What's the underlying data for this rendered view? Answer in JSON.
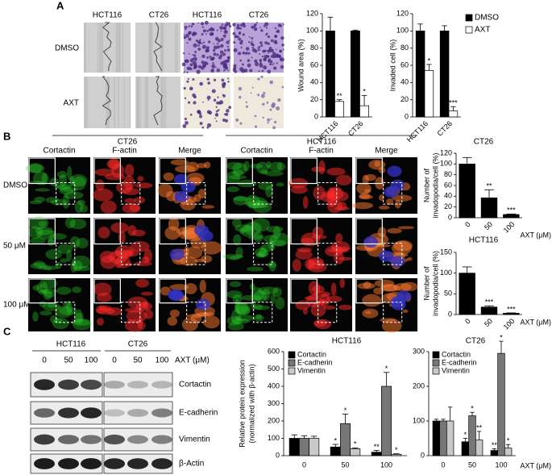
{
  "panel_labels": [
    "A",
    "B",
    "C"
  ],
  "panel_a": {
    "columns": [
      "HCT116",
      "CT26",
      "HCT116",
      "CT26"
    ],
    "rows": [
      "DMSO",
      "AXT"
    ]
  },
  "panel_b": {
    "groups": [
      "CT26",
      "HCT116"
    ],
    "channels": [
      "Cortactin",
      "F-actin",
      "Merge",
      "Cortactin",
      "F-actin",
      "Merge"
    ],
    "rows": [
      "DMSO",
      "50 μM",
      "100 μM"
    ]
  },
  "panel_c": {
    "groups": [
      "HCT116",
      "CT26"
    ],
    "doses": [
      "0",
      "50",
      "100",
      "0",
      "50",
      "100"
    ],
    "dose_label": "AXT (μM)",
    "proteins": [
      "Cortactin",
      "E-cadherin",
      "Vimentin",
      "β-Actin"
    ]
  },
  "chart_data": [
    {
      "type": "bar",
      "ylabel": "Wound area (%)",
      "categories": [
        "HCT116",
        "CT26"
      ],
      "ylim": [
        0,
        120
      ],
      "yticks": [
        0,
        20,
        40,
        60,
        80,
        100,
        120
      ],
      "series": [
        {
          "color": "#000000",
          "values": [
            100,
            100
          ],
          "errors": [
            16,
            1
          ],
          "annotations": [
            null,
            null
          ]
        },
        {
          "color": "#ffffff",
          "values": [
            18,
            13
          ],
          "errors": [
            2,
            12
          ],
          "annotations": [
            "**",
            "*"
          ]
        }
      ]
    },
    {
      "type": "bar",
      "ylabel": "Invaded cell (%)",
      "categories": [
        "HCT116",
        "CT26"
      ],
      "ylim": [
        0,
        120
      ],
      "yticks": [
        0,
        20,
        40,
        60,
        80,
        100,
        120
      ],
      "legend": "right",
      "series": [
        {
          "name": "DMSO",
          "color": "#000000",
          "values": [
            100,
            100
          ],
          "errors": [
            8,
            6
          ],
          "annotations": [
            null,
            null
          ]
        },
        {
          "name": "AXT",
          "color": "#ffffff",
          "values": [
            54,
            7
          ],
          "errors": [
            7,
            5
          ],
          "annotations": [
            "*",
            "***"
          ]
        }
      ]
    },
    {
      "type": "bar",
      "title": "CT26",
      "ylabel": [
        "Number of",
        "invadopodia/cell (%)"
      ],
      "xlabel": "AXT (μM)",
      "categories": [
        "0",
        "50",
        "100"
      ],
      "ylim": [
        0,
        120
      ],
      "yticks": [
        0,
        20,
        40,
        60,
        80,
        100,
        120
      ],
      "series": [
        {
          "color": "#000000",
          "values": [
            100,
            37,
            6
          ],
          "errors": [
            12,
            15,
            1
          ],
          "annotations": [
            null,
            "**",
            "***"
          ]
        }
      ]
    },
    {
      "type": "bar",
      "title": "HCT116",
      "ylabel": [
        "Number of",
        "invadopodia/cell (%)"
      ],
      "xlabel": "AXT (μM)",
      "categories": [
        "0",
        "50",
        "100"
      ],
      "ylim": [
        0,
        150
      ],
      "yticks": [
        0,
        50,
        100,
        150
      ],
      "series": [
        {
          "color": "#000000",
          "values": [
            100,
            18,
            3
          ],
          "errors": [
            15,
            3,
            1
          ],
          "annotations": [
            null,
            "***",
            "***"
          ]
        }
      ]
    },
    {
      "type": "bar",
      "title": "HCT116",
      "ylabel": [
        "Relative protein expression",
        "(normalized with β-actin)"
      ],
      "categories": [
        "0",
        "50",
        "100"
      ],
      "ylim": [
        0,
        600
      ],
      "yticks": [
        0,
        100,
        200,
        300,
        400,
        500,
        600
      ],
      "legend": "upper left",
      "series": [
        {
          "name": "Cortactin",
          "color": "#000000",
          "values": [
            100,
            50,
            20
          ],
          "errors": [
            20,
            15,
            10
          ],
          "annotations": [
            null,
            "*",
            "**"
          ]
        },
        {
          "name": "E-cadherin",
          "color": "#777777",
          "values": [
            100,
            185,
            400
          ],
          "errors": [
            15,
            55,
            80
          ],
          "annotations": [
            null,
            "*",
            "*"
          ]
        },
        {
          "name": "Vimentin",
          "color": "#c8c8c8",
          "values": [
            100,
            40,
            8
          ],
          "errors": [
            12,
            5,
            3
          ],
          "annotations": [
            null,
            "*",
            "*"
          ]
        }
      ]
    },
    {
      "type": "bar",
      "title": "CT26",
      "xlabel": "AXT (μM)",
      "categories": [
        "0",
        "50",
        "100"
      ],
      "ylim": [
        0,
        300
      ],
      "yticks": [
        0,
        100,
        200,
        300
      ],
      "legend": "upper left",
      "series": [
        {
          "name": "Cortactin",
          "color": "#000000",
          "values": [
            100,
            40,
            15
          ],
          "errors": [
            5,
            10,
            5
          ],
          "annotations": [
            null,
            "*",
            "**"
          ]
        },
        {
          "name": "E-cadherin",
          "color": "#777777",
          "values": [
            100,
            115,
            295
          ],
          "errors": [
            5,
            10,
            35
          ],
          "annotations": [
            null,
            "*",
            "*"
          ]
        },
        {
          "name": "Vimentin",
          "color": "#c8c8c8",
          "values": [
            100,
            45,
            22
          ],
          "errors": [
            40,
            25,
            10
          ],
          "annotations": [
            null,
            "**",
            "*"
          ]
        }
      ]
    }
  ]
}
